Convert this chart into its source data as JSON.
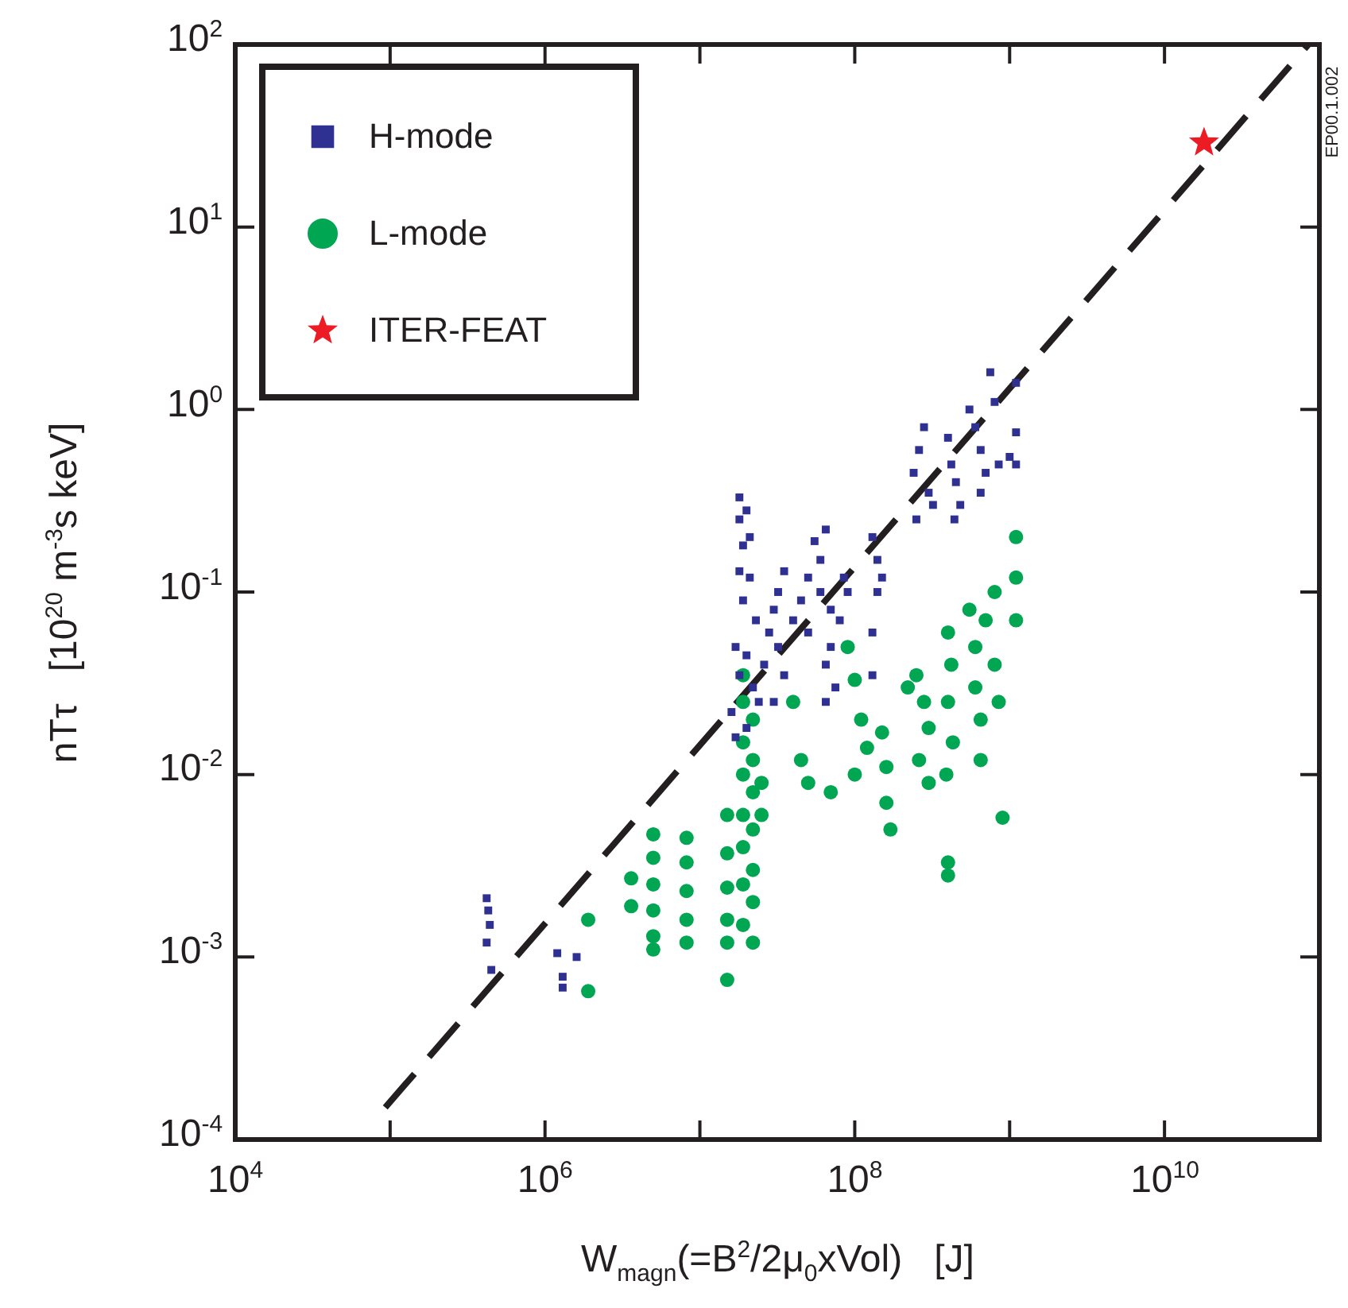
{
  "chart_data": {
    "type": "scatter",
    "xlabel": "W$_{magn}$(=B$^{2}$/2μ$_{0}$xVol)   [J]",
    "ylabel": "nTτ   [10$^{20}$ m$^{-3}$s keV]",
    "annotations": [
      "EP00.1.002"
    ],
    "log": "xy",
    "xlim": [
      10000,
      100000000000
    ],
    "ylim": [
      0.0001,
      100
    ],
    "xticks": [
      {
        "value": 10000,
        "label": "10$^{4}$"
      },
      {
        "value": 100000,
        "label": null
      },
      {
        "value": 1000000,
        "label": "10$^{6}$"
      },
      {
        "value": 10000000,
        "label": null
      },
      {
        "value": 100000000,
        "label": "10$^{8}$"
      },
      {
        "value": 1000000000,
        "label": null
      },
      {
        "value": 10000000000,
        "label": "10$^{10}$"
      },
      {
        "value": 100000000000,
        "label": null
      }
    ],
    "yticks": [
      {
        "value": 0.0001,
        "label": "10$^{-4}$"
      },
      {
        "value": 0.001,
        "label": "10$^{-3}$"
      },
      {
        "value": 0.01,
        "label": "10$^{-2}$"
      },
      {
        "value": 0.1,
        "label": "10$^{-1}$"
      },
      {
        "value": 1,
        "label": "10$^{0}$"
      },
      {
        "value": 10,
        "label": "10$^{1}$"
      },
      {
        "value": 100,
        "label": "10$^{2}$"
      }
    ],
    "legend": "top left",
    "series": [
      {
        "name": "H-mode",
        "color": "#2e3192",
        "marker": "square",
        "x": [
          420000,
          430000,
          440000,
          420000,
          450000,
          1200000,
          1600000,
          1300000,
          1300000,
          18000000,
          18000000,
          19000000,
          20000000,
          21000000,
          18000000,
          19000000,
          21000000,
          23000000,
          17000000,
          18000000,
          20000000,
          22000000,
          16000000,
          17000000,
          20000000,
          24000000,
          26000000,
          28000000,
          30000000,
          32000000,
          35000000,
          32000000,
          35000000,
          30000000,
          40000000,
          45000000,
          50000000,
          50000000,
          55000000,
          60000000,
          65000000,
          60000000,
          70000000,
          70000000,
          65000000,
          65000000,
          80000000,
          85000000,
          90000000,
          75000000,
          130000000,
          140000000,
          150000000,
          140000000,
          130000000,
          130000000,
          240000000,
          260000000,
          280000000,
          300000000,
          320000000,
          250000000,
          400000000,
          420000000,
          450000000,
          480000000,
          440000000,
          550000000,
          600000000,
          650000000,
          700000000,
          750000000,
          800000000,
          850000000,
          650000000,
          1100000000,
          1100000000,
          1100000000,
          1000000000
        ],
        "values": [
          0.0021,
          0.0018,
          0.0015,
          0.0012,
          0.00085,
          0.00105,
          0.001,
          0.00078,
          0.00068,
          0.33,
          0.25,
          0.18,
          0.28,
          0.2,
          0.13,
          0.09,
          0.12,
          0.07,
          0.05,
          0.035,
          0.045,
          0.03,
          0.022,
          0.016,
          0.018,
          0.025,
          0.04,
          0.06,
          0.08,
          0.1,
          0.13,
          0.05,
          0.035,
          0.025,
          0.07,
          0.09,
          0.12,
          0.06,
          0.19,
          0.15,
          0.22,
          0.1,
          0.08,
          0.05,
          0.04,
          0.025,
          0.07,
          0.12,
          0.1,
          0.03,
          0.2,
          0.15,
          0.12,
          0.1,
          0.06,
          0.035,
          0.45,
          0.6,
          0.8,
          0.35,
          0.3,
          0.25,
          0.7,
          0.5,
          0.4,
          0.3,
          0.25,
          1.0,
          0.8,
          0.6,
          0.45,
          1.6,
          1.1,
          0.5,
          0.35,
          1.4,
          0.75,
          0.5,
          0.55
        ]
      },
      {
        "name": "L-mode",
        "color": "#00a651",
        "marker": "circle",
        "x": [
          1900000,
          1900000,
          3600000,
          3600000,
          5000000,
          5000000,
          5000000,
          5000000,
          5000000,
          5000000,
          8200000,
          8200000,
          8200000,
          8200000,
          8200000,
          15000000,
          15000000,
          15000000,
          15000000,
          15000000,
          15000000,
          19000000,
          19000000,
          19000000,
          19000000,
          19000000,
          19000000,
          19000000,
          19000000,
          22000000,
          22000000,
          22000000,
          22000000,
          22000000,
          22000000,
          22000000,
          25000000,
          25000000,
          40000000,
          45000000,
          50000000,
          70000000,
          90000000,
          100000000,
          110000000,
          120000000,
          100000000,
          150000000,
          160000000,
          160000000,
          170000000,
          220000000,
          250000000,
          280000000,
          300000000,
          260000000,
          300000000,
          400000000,
          420000000,
          400000000,
          430000000,
          390000000,
          400000000,
          400000000,
          550000000,
          600000000,
          600000000,
          650000000,
          650000000,
          700000000,
          800000000,
          800000000,
          850000000,
          1100000000,
          1100000000,
          1100000000,
          900000000
        ],
        "values": [
          0.0016,
          0.00065,
          0.0027,
          0.0019,
          0.0047,
          0.0035,
          0.0025,
          0.0018,
          0.0013,
          0.0011,
          0.0045,
          0.0033,
          0.0023,
          0.0016,
          0.0012,
          0.006,
          0.0037,
          0.0024,
          0.0016,
          0.0012,
          0.00075,
          0.035,
          0.025,
          0.015,
          0.01,
          0.006,
          0.004,
          0.0025,
          0.0015,
          0.02,
          0.012,
          0.008,
          0.005,
          0.003,
          0.002,
          0.0012,
          0.009,
          0.006,
          0.025,
          0.012,
          0.009,
          0.008,
          0.05,
          0.033,
          0.02,
          0.014,
          0.01,
          0.017,
          0.011,
          0.007,
          0.005,
          0.03,
          0.035,
          0.025,
          0.018,
          0.012,
          0.009,
          0.06,
          0.04,
          0.025,
          0.015,
          0.01,
          0.0033,
          0.0028,
          0.08,
          0.05,
          0.03,
          0.02,
          0.012,
          0.07,
          0.1,
          0.04,
          0.025,
          0.2,
          0.12,
          0.07,
          0.0058
        ]
      },
      {
        "name": "ITER-FEAT",
        "color": "#ed1c24",
        "marker": "star",
        "x": [
          18000000000
        ],
        "values": [
          29
        ]
      },
      {
        "type": "line",
        "color": "#231f20",
        "line_style": "dashed",
        "marker": "none",
        "x": [
          93000,
          85000000000
        ],
        "values": [
          0.00015,
          100
        ]
      }
    ]
  }
}
